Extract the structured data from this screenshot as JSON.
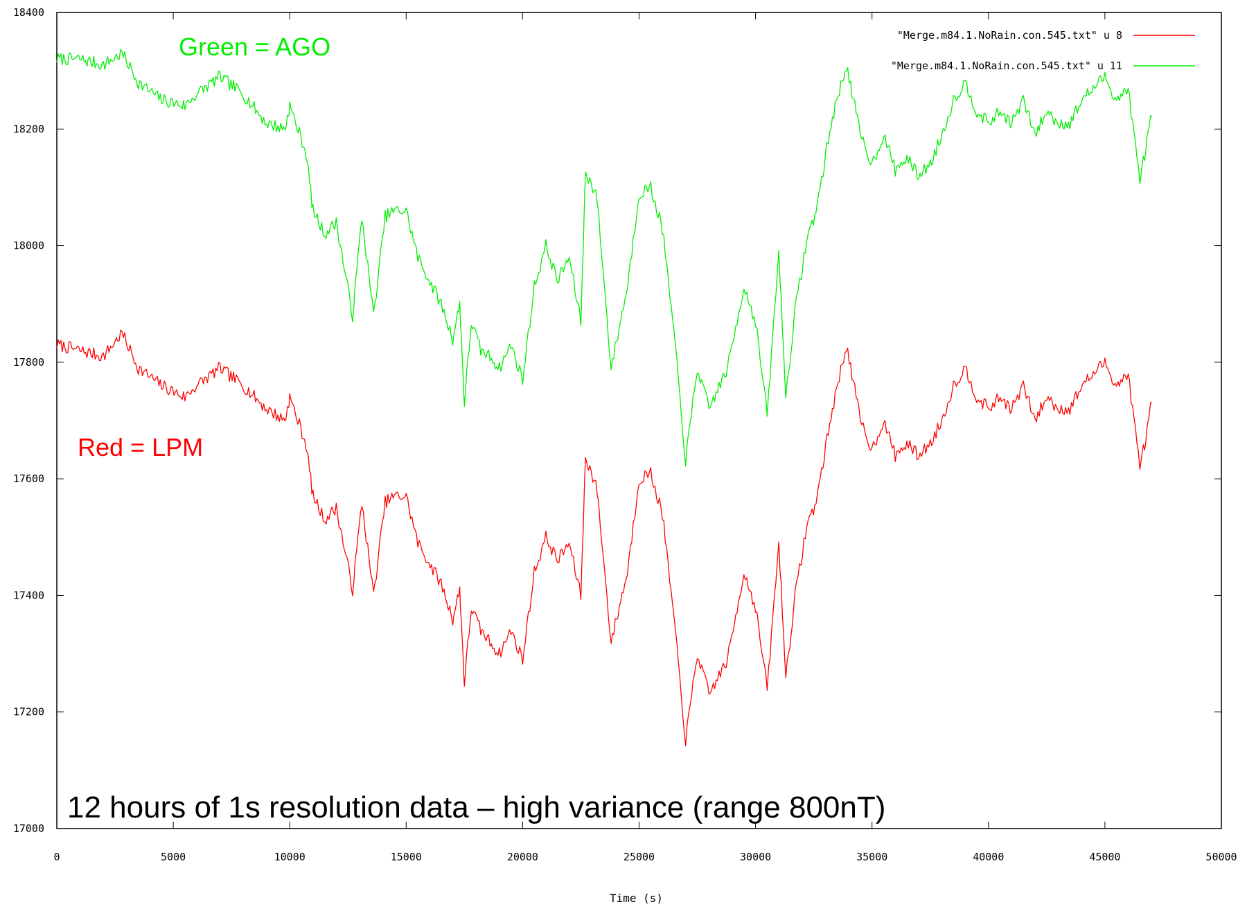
{
  "chart_data": {
    "type": "line",
    "xlabel": "Time (s)",
    "ylabel": "",
    "xlim": [
      0,
      50000
    ],
    "ylim": [
      17000,
      18400
    ],
    "xticks": [
      0,
      5000,
      10000,
      15000,
      20000,
      25000,
      30000,
      35000,
      40000,
      45000,
      50000
    ],
    "yticks": [
      17000,
      17200,
      17400,
      17600,
      17800,
      18000,
      18200,
      18400
    ],
    "grid": false,
    "legend_position": "top-right",
    "series": [
      {
        "name": "\"Merge.m84.1.NoRain.con.545.txt\" u 8",
        "color": "#ff0000",
        "x": [
          0,
          1000,
          2000,
          2800,
          3500,
          4500,
          5500,
          6000,
          7000,
          8000,
          9000,
          9800,
          10000,
          10700,
          11000,
          11500,
          12000,
          12700,
          13100,
          13600,
          14100,
          14500,
          15000,
          15500,
          16500,
          17000,
          17300,
          17500,
          17800,
          18200,
          18600,
          19000,
          19500,
          20000,
          20500,
          21000,
          21500,
          22000,
          22500,
          22700,
          23200,
          23800,
          24500,
          25000,
          25500,
          26000,
          26500,
          27000,
          27500,
          28000,
          28800,
          29500,
          30000,
          30500,
          31000,
          31300,
          31700,
          32200,
          32600,
          33300,
          33900,
          34500,
          35000,
          35500,
          36000,
          36500,
          37000,
          37500,
          38000,
          38500,
          39000,
          39500,
          40000,
          40500,
          41000,
          41500,
          42000,
          42500,
          43000,
          43500,
          44000,
          44500,
          45000,
          45500,
          46000,
          46500,
          46800,
          47000
        ],
        "y": [
          17830,
          17820,
          17810,
          17850,
          17790,
          17760,
          17740,
          17760,
          17790,
          17760,
          17720,
          17700,
          17740,
          17660,
          17570,
          17530,
          17550,
          17410,
          17560,
          17400,
          17560,
          17570,
          17570,
          17490,
          17420,
          17360,
          17410,
          17250,
          17380,
          17340,
          17320,
          17300,
          17340,
          17290,
          17440,
          17500,
          17460,
          17490,
          17400,
          17640,
          17580,
          17320,
          17440,
          17600,
          17610,
          17540,
          17360,
          17150,
          17300,
          17230,
          17290,
          17440,
          17380,
          17240,
          17490,
          17260,
          17400,
          17520,
          17560,
          17720,
          17830,
          17700,
          17650,
          17700,
          17640,
          17660,
          17640,
          17660,
          17700,
          17760,
          17790,
          17740,
          17720,
          17740,
          17720,
          17760,
          17700,
          17740,
          17720,
          17720,
          17760,
          17780,
          17800,
          17760,
          17780,
          17620,
          17680,
          17730
        ]
      },
      {
        "name": "\"Merge.m84.1.NoRain.con.545.txt\" u 11",
        "color": "#00ee00",
        "x": [
          0,
          1000,
          2000,
          2800,
          3500,
          4500,
          5500,
          6000,
          7000,
          8000,
          9000,
          9800,
          10000,
          10700,
          11000,
          11500,
          12000,
          12700,
          13100,
          13600,
          14100,
          14500,
          15000,
          15500,
          16500,
          17000,
          17300,
          17500,
          17800,
          18200,
          18600,
          19000,
          19500,
          20000,
          20500,
          21000,
          21500,
          22000,
          22500,
          22700,
          23200,
          23800,
          24500,
          25000,
          25500,
          26000,
          26500,
          27000,
          27500,
          28000,
          28800,
          29500,
          30000,
          30500,
          31000,
          31300,
          31700,
          32200,
          32600,
          33300,
          33900,
          34500,
          35000,
          35500,
          36000,
          36500,
          37000,
          37500,
          38000,
          38500,
          39000,
          39500,
          40000,
          40500,
          41000,
          41500,
          42000,
          42500,
          43000,
          43500,
          44000,
          44500,
          45000,
          45500,
          46000,
          46500,
          46800,
          47000
        ],
        "y": [
          18320,
          18320,
          18310,
          18330,
          18280,
          18250,
          18240,
          18260,
          18290,
          18260,
          18210,
          18200,
          18240,
          18160,
          18060,
          18020,
          18040,
          17880,
          18050,
          17880,
          18050,
          18060,
          18060,
          17980,
          17900,
          17840,
          17900,
          17730,
          17870,
          17820,
          17810,
          17790,
          17830,
          17770,
          17930,
          18000,
          17940,
          17980,
          17870,
          18130,
          18080,
          17790,
          17930,
          18090,
          18100,
          18030,
          17850,
          17630,
          17790,
          17720,
          17790,
          17930,
          17870,
          17710,
          17990,
          17740,
          17890,
          18010,
          18060,
          18220,
          18310,
          18190,
          18140,
          18190,
          18130,
          18150,
          18120,
          18140,
          18190,
          18250,
          18280,
          18230,
          18210,
          18230,
          18210,
          18250,
          18190,
          18230,
          18210,
          18210,
          18250,
          18270,
          18290,
          18250,
          18270,
          18110,
          18180,
          18220
        ]
      }
    ]
  },
  "annotations": {
    "green_label": "Green = AGO",
    "red_label": "Red = LPM",
    "caption": "12 hours of 1s resolution data – high variance (range 800nT)"
  }
}
